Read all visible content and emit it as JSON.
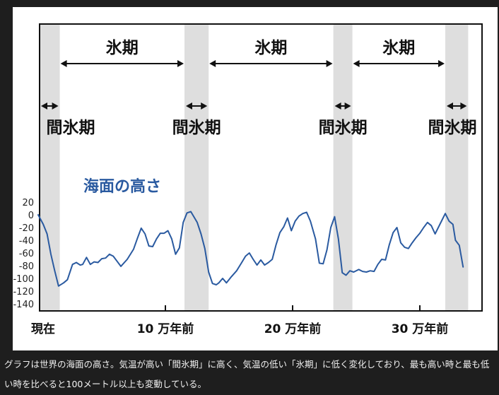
{
  "chart_data": {
    "type": "line",
    "ylabel": "",
    "ylim": [
      -140,
      20
    ],
    "yticks": [
      20,
      0,
      -20,
      -40,
      -60,
      -80,
      -100,
      -120,
      -140
    ],
    "x_axis_labels": [
      {
        "text": "現在",
        "at": 0
      },
      {
        "text": "10 万年前",
        "at": 100
      },
      {
        "text": "20 万年前",
        "at": 200
      },
      {
        "text": "30 万年前",
        "at": 300
      }
    ],
    "xlim": [
      -2,
      338
    ],
    "series": [
      {
        "name": "海面の高さ",
        "color": "#2a5aa0",
        "x": [
          0,
          4,
          7,
          10,
          13,
          16,
          20,
          23,
          27,
          30,
          33,
          35,
          38,
          41,
          44,
          47,
          50,
          53,
          56,
          59,
          62,
          65,
          70,
          75,
          78,
          81,
          84,
          87,
          90,
          93,
          96,
          99,
          102,
          105,
          108,
          111,
          114,
          117,
          120,
          125,
          128,
          131,
          134,
          137,
          140,
          142,
          145,
          148,
          152,
          156,
          160,
          163,
          166,
          169,
          172,
          175,
          178,
          181,
          184,
          187,
          190,
          193,
          196,
          199,
          202,
          205,
          208,
          211,
          214,
          218,
          221,
          224,
          227,
          230,
          233,
          236,
          239,
          242,
          245,
          248,
          252,
          255,
          258,
          261,
          264,
          267,
          270,
          273,
          276,
          279,
          282,
          285,
          288,
          291,
          294,
          297,
          300,
          303,
          306,
          309,
          312,
          314,
          317,
          320,
          323,
          326,
          328,
          331,
          334
        ],
        "values": [
          0,
          -15,
          -30,
          -62,
          -88,
          -112,
          -107,
          -102,
          -78,
          -75,
          -79,
          -78,
          -67,
          -78,
          -74,
          -75,
          -69,
          -68,
          -62,
          -65,
          -73,
          -81,
          -70,
          -54,
          -37,
          -21,
          -30,
          -49,
          -50,
          -38,
          -29,
          -29,
          -25,
          -38,
          -62,
          -52,
          -12,
          3,
          5,
          -12,
          -30,
          -53,
          -90,
          -108,
          -110,
          -107,
          -100,
          -107,
          -97,
          -88,
          -75,
          -65,
          -60,
          -70,
          -79,
          -71,
          -79,
          -75,
          -70,
          -47,
          -28,
          -19,
          -5,
          -25,
          -10,
          -2,
          2,
          4,
          -10,
          -38,
          -76,
          -77,
          -55,
          -20,
          -3,
          -38,
          -91,
          -95,
          -88,
          -90,
          -86,
          -89,
          -90,
          -88,
          -89,
          -78,
          -70,
          -71,
          -47,
          -28,
          -20,
          -44,
          -51,
          -53,
          -44,
          -36,
          -29,
          -20,
          -12,
          -17,
          -30,
          -22,
          -10,
          2,
          -10,
          -15,
          -40,
          -48,
          -82
        ]
      }
    ],
    "shaded_periods": [
      {
        "label": "間氷期",
        "from": -2,
        "to": 17
      },
      {
        "label": "間氷期",
        "from": 115,
        "to": 134
      },
      {
        "label": "間氷期",
        "from": 232,
        "to": 247
      },
      {
        "label": "間氷期",
        "from": 320,
        "to": 338
      }
    ],
    "glacial_periods": [
      {
        "label": "氷期",
        "from": 17,
        "to": 115
      },
      {
        "label": "氷期",
        "from": 134,
        "to": 232
      },
      {
        "label": "氷期",
        "from": 247,
        "to": 320
      }
    ]
  },
  "caption": "グラフは世界の海面の高さ。気温が高い「間氷期」に高く、気温の低い「氷期」に低く変化しており、最も高い時と最も低い時を比べると100メートル以上も変動している。"
}
